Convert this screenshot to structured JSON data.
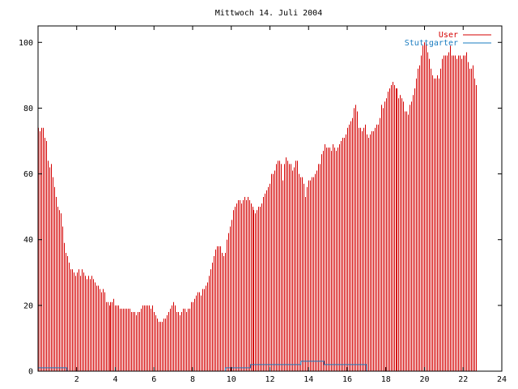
{
  "chart_data": {
    "type": "bar",
    "title": "Mittwoch 14. Juli 2004",
    "xlabel": "",
    "ylabel": "",
    "xlim": [
      0,
      24
    ],
    "ylim": [
      0,
      105
    ],
    "x_ticks": [
      2,
      4,
      6,
      8,
      10,
      12,
      14,
      16,
      18,
      20,
      22,
      24
    ],
    "x_tick_labels": [
      "2",
      "4",
      "6",
      "8",
      "10",
      "12",
      "14",
      "16",
      "18",
      "20",
      "22",
      "24"
    ],
    "y_ticks": [
      0,
      20,
      40,
      60,
      80,
      100
    ],
    "y_tick_labels": [
      "0",
      "20",
      "40",
      "60",
      "80",
      "100"
    ],
    "grid": false,
    "legend_placement": "top-right",
    "series": [
      {
        "name": "User",
        "color": "#d40000",
        "style": "impulses",
        "x_start": 0.0,
        "x_step": 0.0833,
        "values": [
          74,
          73,
          74,
          74,
          71,
          70,
          64,
          62,
          63,
          59,
          56,
          53,
          50,
          49,
          48,
          44,
          39,
          36,
          35,
          33,
          31,
          31,
          30,
          29,
          30,
          31,
          29,
          31,
          30,
          29,
          28,
          29,
          28,
          29,
          28,
          27,
          26,
          26,
          25,
          24,
          25,
          24,
          21,
          21,
          20,
          21,
          21,
          22,
          20,
          20,
          20,
          19,
          19,
          19,
          19,
          19,
          19,
          19,
          18,
          18,
          18,
          17,
          18,
          18,
          19,
          20,
          20,
          20,
          20,
          20,
          19,
          20,
          18,
          17,
          16,
          15,
          15,
          15,
          16,
          16,
          17,
          18,
          19,
          20,
          21,
          20,
          18,
          18,
          17,
          18,
          19,
          19,
          18,
          19,
          19,
          21,
          21,
          22,
          23,
          24,
          24,
          23,
          25,
          25,
          26,
          27,
          29,
          31,
          33,
          35,
          37,
          38,
          38,
          38,
          36,
          35,
          36,
          40,
          42,
          44,
          46,
          49,
          50,
          51,
          52,
          52,
          51,
          52,
          53,
          52,
          53,
          52,
          51,
          50,
          49,
          48,
          49,
          50,
          50,
          51,
          53,
          54,
          55,
          56,
          57,
          60,
          60,
          61,
          63,
          64,
          64,
          63,
          58,
          63,
          65,
          64,
          63,
          63,
          61,
          62,
          64,
          64,
          60,
          59,
          59,
          57,
          53,
          56,
          58,
          58,
          59,
          59,
          60,
          61,
          63,
          63,
          66,
          67,
          69,
          68,
          68,
          68,
          67,
          69,
          68,
          67,
          68,
          69,
          70,
          71,
          71,
          72,
          74,
          75,
          76,
          77,
          80,
          81,
          79,
          74,
          74,
          73,
          74,
          75,
          72,
          71,
          72,
          73,
          73,
          74,
          75,
          75,
          77,
          81,
          80,
          82,
          83,
          85,
          86,
          87,
          88,
          87,
          86,
          86,
          83,
          84,
          83,
          82,
          79,
          79,
          78,
          81,
          82,
          84,
          86,
          89,
          92,
          93,
          96,
          99,
          100,
          100,
          97,
          95,
          92,
          90,
          89,
          89,
          90,
          89,
          92,
          95,
          96,
          96,
          96,
          97,
          99,
          96,
          96,
          96,
          95,
          96,
          96,
          95,
          96,
          96,
          97,
          94,
          92,
          92,
          93,
          89,
          87
        ]
      },
      {
        "name": "Stuttgarter",
        "color": "#1a7cc0",
        "style": "line",
        "points": [
          [
            0.0,
            1
          ],
          [
            1.5,
            1
          ],
          [
            1.5,
            0
          ],
          [
            9.7,
            0
          ],
          [
            9.7,
            1
          ],
          [
            11.0,
            1
          ],
          [
            11.0,
            2
          ],
          [
            13.6,
            2
          ],
          [
            13.6,
            3
          ],
          [
            14.8,
            3
          ],
          [
            14.8,
            2
          ],
          [
            17.0,
            2
          ],
          [
            17.0,
            0
          ],
          [
            24.0,
            0
          ]
        ]
      }
    ]
  }
}
